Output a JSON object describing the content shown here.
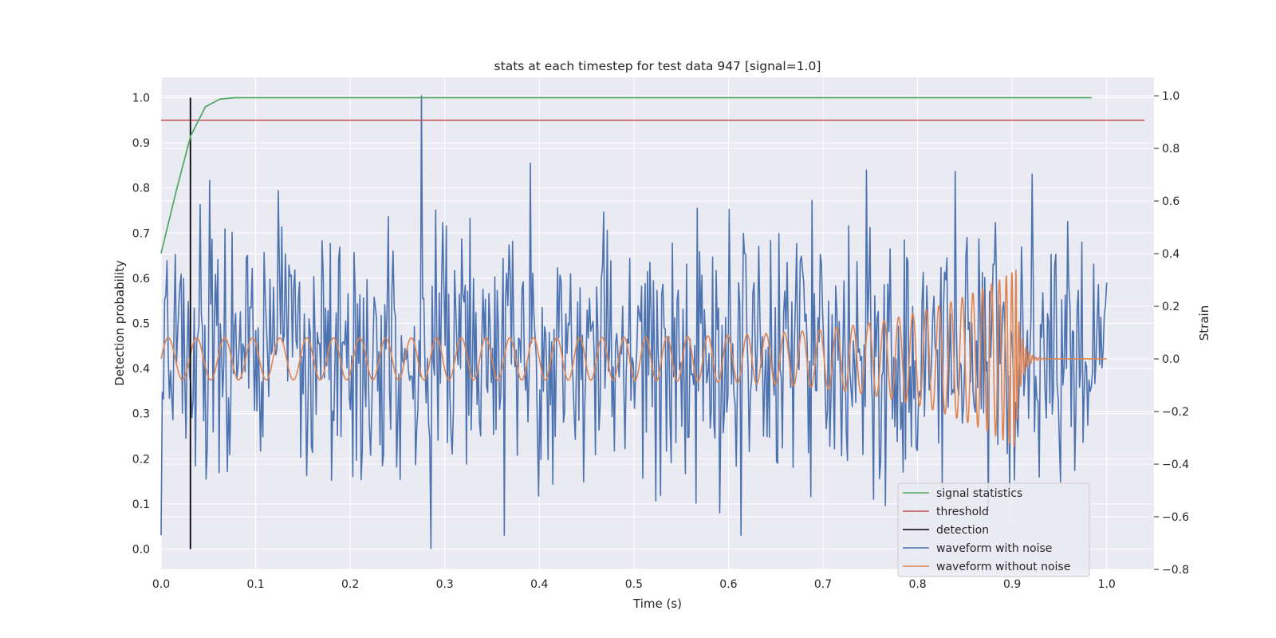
{
  "chart_data": {
    "type": "line",
    "title": "stats at each timestep for test data 947 [signal=1.0]",
    "xlabel": "Time (s)",
    "ylabel": "Detection probability",
    "y2label": "Strain",
    "xlim": [
      0.0,
      1.05
    ],
    "ylim": [
      -0.045,
      1.045
    ],
    "y2lim": [
      -0.8,
      1.07
    ],
    "x_ticks": [
      "0.0",
      "0.1",
      "0.2",
      "0.3",
      "0.4",
      "0.5",
      "0.6",
      "0.7",
      "0.8",
      "0.9",
      "1.0"
    ],
    "y_ticks": [
      "0.0",
      "0.1",
      "0.2",
      "0.3",
      "0.4",
      "0.5",
      "0.6",
      "0.7",
      "0.8",
      "0.9",
      "1.0"
    ],
    "y2_ticks": [
      "−0.8",
      "−0.6",
      "−0.4",
      "−0.2",
      "0.0",
      "0.2",
      "0.4",
      "0.6",
      "0.8",
      "1.0"
    ],
    "grid": true,
    "legend_position": "lower-right",
    "series": [
      {
        "name": "signal statistics",
        "axis": "left",
        "color": "#55a868",
        "x": [
          0.0,
          0.0156,
          0.0312,
          0.0469,
          0.0625,
          0.0781,
          0.1,
          0.2,
          0.4,
          0.6,
          0.8,
          0.984
        ],
        "y": [
          0.655,
          0.79,
          0.915,
          0.98,
          0.997,
          1.0,
          1.0,
          1.0,
          1.0,
          1.0,
          1.0,
          1.0
        ]
      },
      {
        "name": "threshold",
        "axis": "left",
        "color": "#c44e52",
        "x": [
          0.0,
          1.04
        ],
        "y": [
          0.95,
          0.95
        ]
      },
      {
        "name": "detection",
        "axis": "left",
        "color": "#000000",
        "x": [
          0.031,
          0.031
        ],
        "y": [
          0.0,
          1.0
        ]
      },
      {
        "name": "waveform with noise",
        "axis": "right",
        "color": "#4c72b0",
        "x_range": [
          0.0,
          1.0
        ],
        "points": 800,
        "envelope": [
          -0.72,
          1.0
        ],
        "y_sample_peaks": {
          "max": 1.0,
          "max_at": 0.275,
          "min": -0.72,
          "min_at": 0.285
        }
      },
      {
        "name": "waveform without noise",
        "axis": "right",
        "color": "#dd8452",
        "x_range": [
          0.0,
          1.0
        ],
        "amplitude_start": 0.08,
        "amplitude_peak": 0.34,
        "peak_time": 0.905,
        "end_value": 0.0
      }
    ]
  },
  "legend": {
    "items": [
      {
        "label": "signal statistics",
        "color": "#55a868"
      },
      {
        "label": "threshold",
        "color": "#c44e52"
      },
      {
        "label": "detection",
        "color": "#000000"
      },
      {
        "label": "waveform with noise",
        "color": "#4c72b0"
      },
      {
        "label": "waveform without noise",
        "color": "#dd8452"
      }
    ]
  },
  "colors": {
    "plot_background": "#eaeaf2",
    "grid": "#ffffff",
    "text": "#262626"
  }
}
